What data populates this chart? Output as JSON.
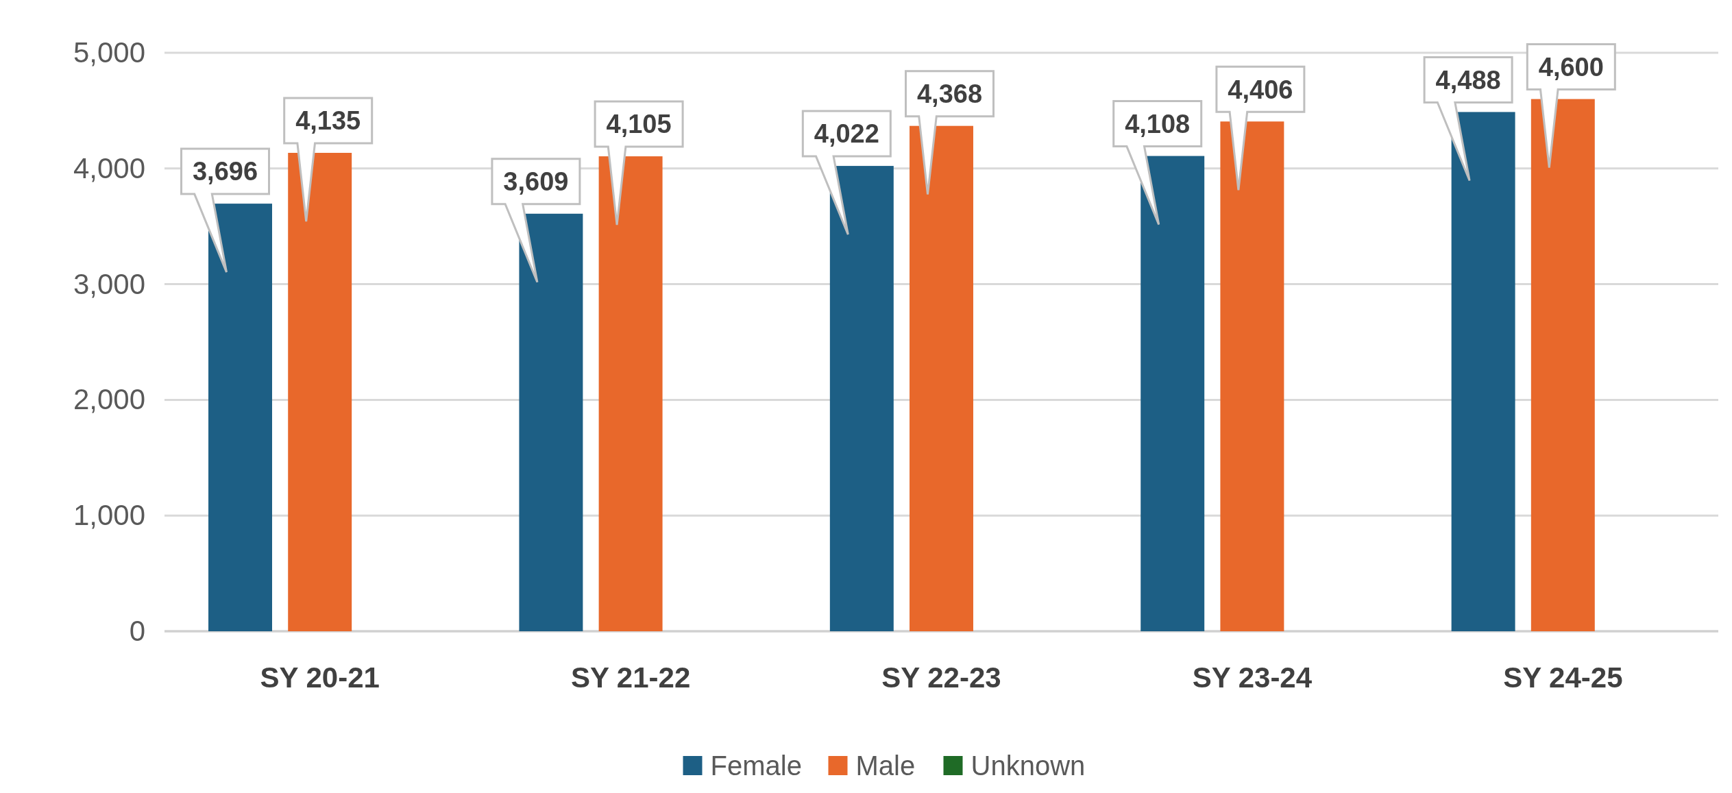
{
  "chart_data": {
    "type": "bar",
    "categories": [
      "SY 20-21",
      "SY 21-22",
      "SY 22-23",
      "SY 23-24",
      "SY 24-25"
    ],
    "series": [
      {
        "name": "Female",
        "color": "#1d5f85",
        "values": [
          3696,
          3609,
          4022,
          4108,
          4488
        ],
        "value_labels": [
          "3,696",
          "3,609",
          "4,022",
          "4,108",
          "4,488"
        ]
      },
      {
        "name": "Male",
        "color": "#e8682b",
        "values": [
          4135,
          4105,
          4368,
          4406,
          4600
        ],
        "value_labels": [
          "4,135",
          "4,105",
          "4,368",
          "4,406",
          "4,600"
        ]
      },
      {
        "name": "Unknown",
        "color": "#1f6b26",
        "values": [
          null,
          null,
          null,
          null,
          null
        ]
      }
    ],
    "ylim": [
      0,
      5000
    ],
    "yticks": [
      {
        "value": 0,
        "label": "0"
      },
      {
        "value": 1000,
        "label": "1,000"
      },
      {
        "value": 2000,
        "label": "2,000"
      },
      {
        "value": 3000,
        "label": "3,000"
      },
      {
        "value": 4000,
        "label": "4,000"
      },
      {
        "value": 5000,
        "label": "5,000"
      }
    ],
    "grid": "y",
    "legend": "bottom"
  }
}
